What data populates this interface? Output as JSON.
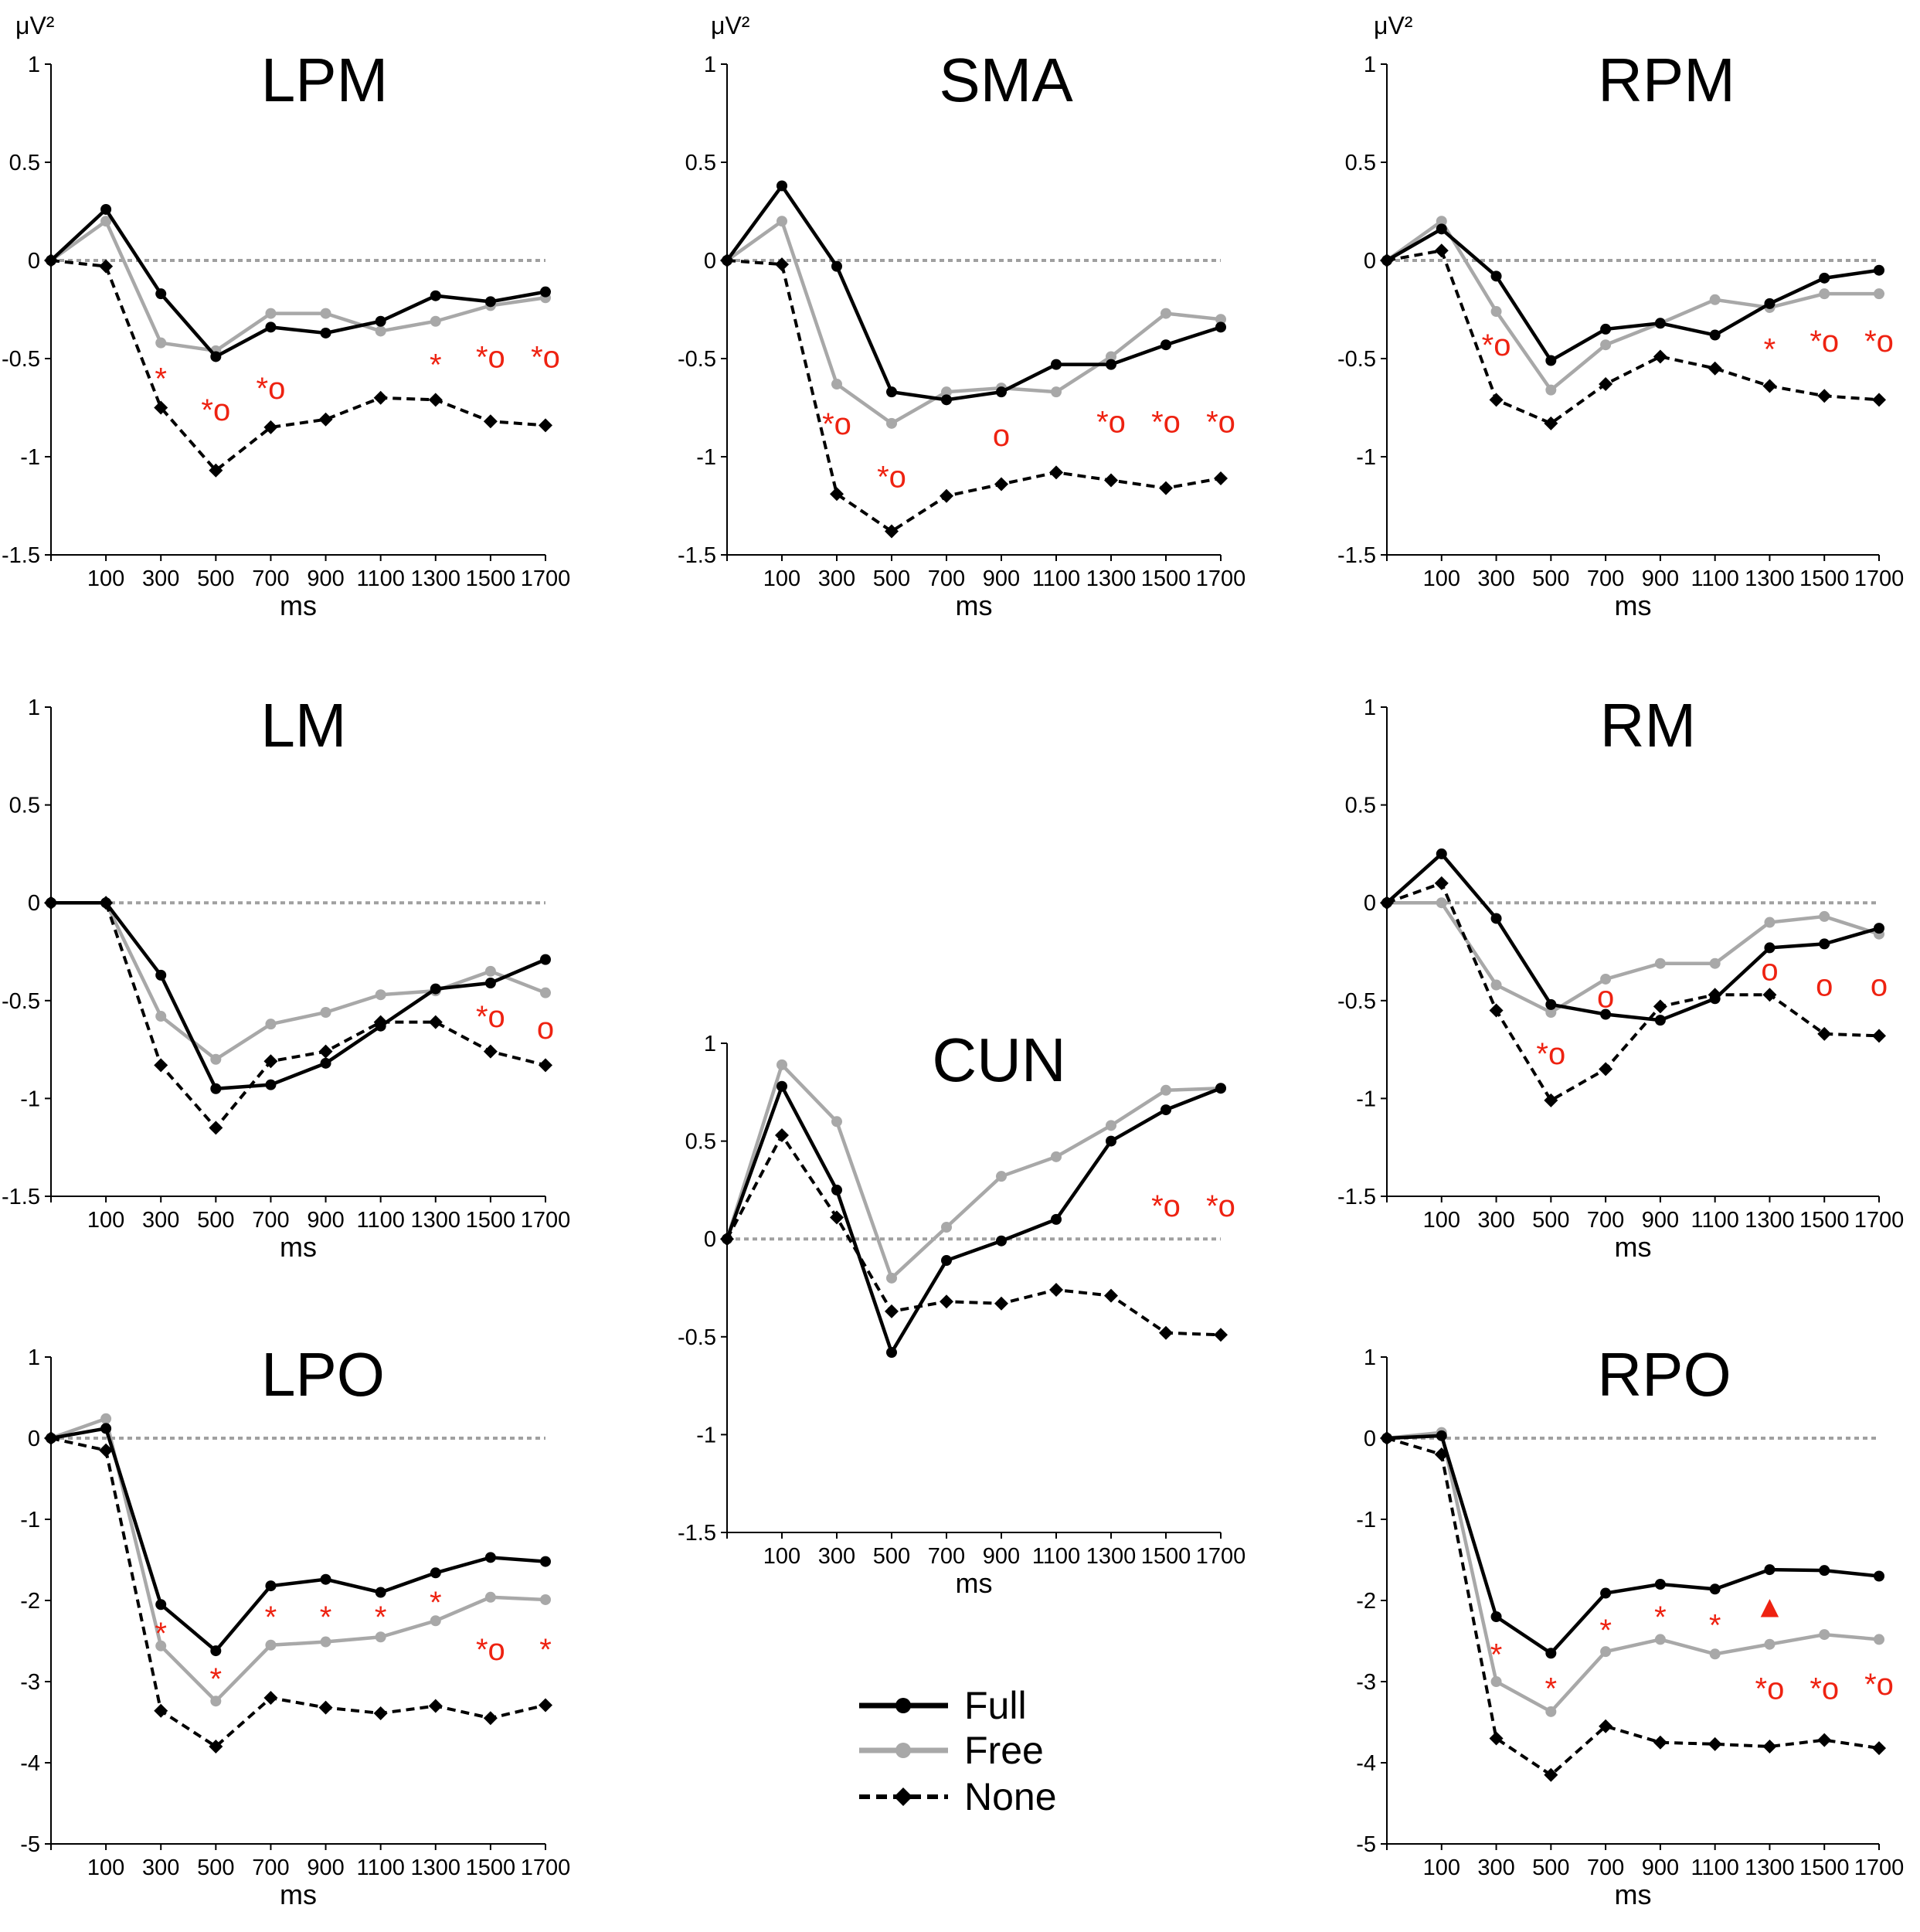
{
  "y_unit": "μV²",
  "legend": {
    "full": "Full",
    "free": "Free",
    "none": "None"
  },
  "colors": {
    "full": "#000000",
    "free": "#a8a8a8",
    "none": "#000000",
    "marker_red": "#ee2211",
    "zero_line": "#a0a0a0"
  },
  "chart_data": [
    {
      "id": "LPM",
      "type": "line",
      "title": "LPM",
      "xlabel": "ms",
      "ylabel": "μV²",
      "x": [
        -100,
        100,
        300,
        500,
        700,
        900,
        1100,
        1300,
        1500,
        1700
      ],
      "xticks": [
        100,
        300,
        500,
        700,
        900,
        1100,
        1300,
        1500,
        1700
      ],
      "ylim": [
        -1.5,
        1
      ],
      "yticks": [
        1,
        0.5,
        0,
        -0.5,
        -1,
        -1.5
      ],
      "ytick_labels": [
        "1",
        "0.5",
        "0",
        "-0.5",
        "-1",
        "-1.5"
      ],
      "series": [
        {
          "name": "Full",
          "values": [
            0,
            0.26,
            -0.17,
            -0.49,
            -0.34,
            -0.37,
            -0.31,
            -0.18,
            -0.21,
            -0.16
          ]
        },
        {
          "name": "Free",
          "values": [
            0,
            0.2,
            -0.42,
            -0.46,
            -0.27,
            -0.27,
            -0.36,
            -0.31,
            -0.23,
            -0.19
          ]
        },
        {
          "name": "None",
          "values": [
            0,
            -0.03,
            -0.75,
            -1.07,
            -0.85,
            -0.81,
            -0.7,
            -0.71,
            -0.82,
            -0.84
          ]
        }
      ],
      "annotations": [
        {
          "x": 300,
          "y": -0.6,
          "label": "*"
        },
        {
          "x": 500,
          "y": -0.76,
          "label": "*o"
        },
        {
          "x": 700,
          "y": -0.65,
          "label": "*o"
        },
        {
          "x": 1300,
          "y": -0.53,
          "label": "*"
        },
        {
          "x": 1500,
          "y": -0.49,
          "label": "*o"
        },
        {
          "x": 1700,
          "y": -0.49,
          "label": "*o"
        }
      ]
    },
    {
      "id": "SMA",
      "type": "line",
      "title": "SMA",
      "xlabel": "ms",
      "ylabel": "",
      "x": [
        -100,
        100,
        300,
        500,
        700,
        900,
        1100,
        1300,
        1500,
        1700
      ],
      "xticks": [
        100,
        300,
        500,
        700,
        900,
        1100,
        1300,
        1500,
        1700
      ],
      "ylim": [
        -1.5,
        1
      ],
      "yticks": [
        1,
        0.5,
        0,
        -0.5,
        -1,
        -1.5
      ],
      "ytick_labels": [
        "1",
        "0.5",
        "0",
        "-0.5",
        "-1",
        "-1.5"
      ],
      "series": [
        {
          "name": "Full",
          "values": [
            0,
            0.38,
            -0.03,
            -0.67,
            -0.71,
            -0.67,
            -0.53,
            -0.53,
            -0.43,
            -0.34
          ]
        },
        {
          "name": "Free",
          "values": [
            0,
            0.2,
            -0.63,
            -0.83,
            -0.67,
            -0.65,
            -0.67,
            -0.49,
            -0.27,
            -0.3
          ]
        },
        {
          "name": "None",
          "values": [
            0,
            -0.02,
            -1.19,
            -1.38,
            -1.2,
            -1.14,
            -1.08,
            -1.12,
            -1.16,
            -1.11
          ]
        }
      ],
      "annotations": [
        {
          "x": 300,
          "y": -0.83,
          "label": "*o"
        },
        {
          "x": 500,
          "y": -1.1,
          "label": "*o"
        },
        {
          "x": 900,
          "y": -0.89,
          "label": "o"
        },
        {
          "x": 1300,
          "y": -0.82,
          "label": "*o"
        },
        {
          "x": 1500,
          "y": -0.82,
          "label": "*o"
        },
        {
          "x": 1700,
          "y": -0.82,
          "label": "*o"
        }
      ]
    },
    {
      "id": "RPM",
      "type": "line",
      "title": "RPM",
      "xlabel": "ms",
      "ylabel": "μV²",
      "x": [
        -100,
        100,
        300,
        500,
        700,
        900,
        1100,
        1300,
        1500,
        1700
      ],
      "xticks": [
        100,
        300,
        500,
        700,
        900,
        1100,
        1300,
        1500,
        1700
      ],
      "ylim": [
        -1.5,
        1
      ],
      "yticks": [
        1,
        0.5,
        0,
        -0.5,
        -1,
        -1.5
      ],
      "ytick_labels": [
        "1",
        "0.5",
        "0",
        "-0.5",
        "-1",
        "-1.5"
      ],
      "series": [
        {
          "name": "Full",
          "values": [
            0,
            0.16,
            -0.08,
            -0.51,
            -0.35,
            -0.32,
            -0.38,
            -0.22,
            -0.09,
            -0.05
          ]
        },
        {
          "name": "Free",
          "values": [
            0,
            0.2,
            -0.26,
            -0.66,
            -0.43,
            -0.32,
            -0.2,
            -0.24,
            -0.17,
            -0.17
          ]
        },
        {
          "name": "None",
          "values": [
            0,
            0.05,
            -0.71,
            -0.83,
            -0.63,
            -0.49,
            -0.55,
            -0.64,
            -0.69,
            -0.71
          ]
        }
      ],
      "annotations": [
        {
          "x": 300,
          "y": -0.43,
          "label": "*o"
        },
        {
          "x": 1300,
          "y": -0.45,
          "label": "*"
        },
        {
          "x": 1500,
          "y": -0.41,
          "label": "*o"
        },
        {
          "x": 1700,
          "y": -0.41,
          "label": "*o"
        }
      ]
    },
    {
      "id": "LM",
      "type": "line",
      "title": "LM",
      "xlabel": "ms",
      "ylabel": "",
      "x": [
        -100,
        100,
        300,
        500,
        700,
        900,
        1100,
        1300,
        1500,
        1700
      ],
      "xticks": [
        100,
        300,
        500,
        700,
        900,
        1100,
        1300,
        1500,
        1700
      ],
      "ylim": [
        -1.5,
        1
      ],
      "yticks": [
        1,
        0.5,
        0,
        -0.5,
        -1,
        -1.5
      ],
      "ytick_labels": [
        "1",
        "0.5",
        "0",
        "-0.5",
        "-1",
        "-1.5"
      ],
      "series": [
        {
          "name": "Full",
          "values": [
            0,
            0,
            -0.37,
            -0.95,
            -0.93,
            -0.82,
            -0.63,
            -0.44,
            -0.41,
            -0.29
          ]
        },
        {
          "name": "Free",
          "values": [
            0,
            0,
            -0.58,
            -0.8,
            -0.62,
            -0.56,
            -0.47,
            -0.45,
            -0.35,
            -0.46
          ]
        },
        {
          "name": "None",
          "values": [
            0,
            0,
            -0.83,
            -1.15,
            -0.81,
            -0.76,
            -0.61,
            -0.61,
            -0.76,
            -0.83
          ]
        }
      ],
      "annotations": [
        {
          "x": 1500,
          "y": -0.58,
          "label": "*o"
        },
        {
          "x": 1700,
          "y": -0.64,
          "label": "o"
        }
      ]
    },
    {
      "id": "RM",
      "type": "line",
      "title": "RM",
      "xlabel": "ms",
      "ylabel": "",
      "x": [
        -100,
        100,
        300,
        500,
        700,
        900,
        1100,
        1300,
        1500,
        1700
      ],
      "xticks": [
        100,
        300,
        500,
        700,
        900,
        1100,
        1300,
        1500,
        1700
      ],
      "ylim": [
        -1.5,
        1
      ],
      "yticks": [
        1,
        0.5,
        0,
        -0.5,
        -1,
        -1.5
      ],
      "ytick_labels": [
        "1",
        "0.5",
        "0",
        "-0.5",
        "-1",
        "-1.5"
      ],
      "series": [
        {
          "name": "Full",
          "values": [
            0,
            0.25,
            -0.08,
            -0.52,
            -0.57,
            -0.6,
            -0.49,
            -0.23,
            -0.21,
            -0.13
          ]
        },
        {
          "name": "Free",
          "values": [
            0,
            0,
            -0.42,
            -0.56,
            -0.39,
            -0.31,
            -0.31,
            -0.1,
            -0.07,
            -0.16
          ]
        },
        {
          "name": "None",
          "values": [
            0,
            0.1,
            -0.55,
            -1.01,
            -0.85,
            -0.53,
            -0.47,
            -0.47,
            -0.67,
            -0.68
          ]
        }
      ],
      "annotations": [
        {
          "x": 500,
          "y": -0.77,
          "label": "*o"
        },
        {
          "x": 700,
          "y": -0.48,
          "label": "o"
        },
        {
          "x": 1300,
          "y": -0.34,
          "label": "o"
        },
        {
          "x": 1500,
          "y": -0.42,
          "label": "o"
        },
        {
          "x": 1700,
          "y": -0.42,
          "label": "o"
        }
      ]
    },
    {
      "id": "CUN",
      "type": "line",
      "title": "CUN",
      "xlabel": "ms",
      "ylabel": "",
      "x": [
        -100,
        100,
        300,
        500,
        700,
        900,
        1100,
        1300,
        1500,
        1700
      ],
      "xticks": [
        100,
        300,
        500,
        700,
        900,
        1100,
        1300,
        1500,
        1700
      ],
      "ylim": [
        -1.5,
        1
      ],
      "yticks": [
        1,
        0.5,
        0,
        -0.5,
        -1,
        -1.5
      ],
      "ytick_labels": [
        "1",
        "0.5",
        "0",
        "-0.5",
        "-1",
        "-1.5"
      ],
      "series": [
        {
          "name": "Full",
          "values": [
            0,
            0.78,
            0.25,
            -0.58,
            -0.11,
            -0.01,
            0.1,
            0.5,
            0.66,
            0.77
          ]
        },
        {
          "name": "Free",
          "values": [
            0,
            0.89,
            0.6,
            -0.2,
            0.06,
            0.32,
            0.42,
            0.58,
            0.76,
            0.77
          ]
        },
        {
          "name": "None",
          "values": [
            0,
            0.53,
            0.11,
            -0.37,
            -0.32,
            -0.33,
            -0.26,
            -0.29,
            -0.48,
            -0.49
          ]
        }
      ],
      "annotations": [
        {
          "x": 1500,
          "y": 0.17,
          "label": "*o"
        },
        {
          "x": 1700,
          "y": 0.17,
          "label": "*o"
        }
      ]
    },
    {
      "id": "LPO",
      "type": "line",
      "title": "LPO",
      "xlabel": "ms",
      "ylabel": "",
      "x": [
        -100,
        100,
        300,
        500,
        700,
        900,
        1100,
        1300,
        1500,
        1700
      ],
      "xticks": [
        100,
        300,
        500,
        700,
        900,
        1100,
        1300,
        1500,
        1700
      ],
      "ylim": [
        -5,
        1
      ],
      "yticks": [
        1,
        0,
        -1,
        -2,
        -3,
        -4,
        -5
      ],
      "ytick_labels": [
        "1",
        "0",
        "-1",
        "-2",
        "-3",
        "-4",
        "-5"
      ],
      "series": [
        {
          "name": "Full",
          "values": [
            0,
            0.12,
            -2.05,
            -2.62,
            -1.82,
            -1.74,
            -1.9,
            -1.66,
            -1.47,
            -1.52
          ]
        },
        {
          "name": "Free",
          "values": [
            0,
            0.24,
            -2.56,
            -3.24,
            -2.55,
            -2.51,
            -2.45,
            -2.25,
            -1.96,
            -1.99
          ]
        },
        {
          "name": "None",
          "values": [
            0,
            -0.15,
            -3.36,
            -3.8,
            -3.2,
            -3.32,
            -3.39,
            -3.3,
            -3.45,
            -3.29
          ]
        }
      ],
      "annotations": [
        {
          "x": 300,
          "y": -2.4,
          "label": "*"
        },
        {
          "x": 500,
          "y": -2.96,
          "label": "*"
        },
        {
          "x": 700,
          "y": -2.2,
          "label": "*"
        },
        {
          "x": 900,
          "y": -2.2,
          "label": "*"
        },
        {
          "x": 1100,
          "y": -2.2,
          "label": "*"
        },
        {
          "x": 1300,
          "y": -2.02,
          "label": "*"
        },
        {
          "x": 1500,
          "y": -2.6,
          "label": "*o"
        },
        {
          "x": 1700,
          "y": -2.6,
          "label": "*"
        }
      ]
    },
    {
      "id": "RPO",
      "type": "line",
      "title": "RPO",
      "xlabel": "ms",
      "ylabel": "",
      "x": [
        -100,
        100,
        300,
        500,
        700,
        900,
        1100,
        1300,
        1500,
        1700
      ],
      "xticks": [
        100,
        300,
        500,
        700,
        900,
        1100,
        1300,
        1500,
        1700
      ],
      "ylim": [
        -5,
        1
      ],
      "yticks": [
        1,
        0,
        -1,
        -2,
        -3,
        -4,
        -5
      ],
      "ytick_labels": [
        "1",
        "0",
        "-1",
        "-2",
        "-3",
        "-4",
        "-5"
      ],
      "series": [
        {
          "name": "Full",
          "values": [
            0,
            0.03,
            -2.2,
            -2.65,
            -1.91,
            -1.8,
            -1.86,
            -1.62,
            -1.63,
            -1.7
          ]
        },
        {
          "name": "Free",
          "values": [
            0,
            0.07,
            -3.0,
            -3.37,
            -2.63,
            -2.48,
            -2.66,
            -2.54,
            -2.42,
            -2.48
          ]
        },
        {
          "name": "None",
          "values": [
            0,
            -0.2,
            -3.7,
            -4.15,
            -3.55,
            -3.75,
            -3.77,
            -3.8,
            -3.72,
            -3.82
          ]
        }
      ],
      "annotations": [
        {
          "x": 300,
          "y": -2.66,
          "label": "*"
        },
        {
          "x": 500,
          "y": -3.08,
          "label": "*"
        },
        {
          "x": 700,
          "y": -2.36,
          "label": "*"
        },
        {
          "x": 900,
          "y": -2.2,
          "label": "*"
        },
        {
          "x": 1100,
          "y": -2.3,
          "label": "*"
        },
        {
          "x": 1300,
          "y": -2.07,
          "label": "▲"
        },
        {
          "x": 1500,
          "y": -3.08,
          "label": "*o"
        },
        {
          "x": 1700,
          "y": -3.03,
          "label": "*o"
        },
        {
          "x": 1300,
          "y": -3.08,
          "label": "*o"
        }
      ]
    }
  ]
}
